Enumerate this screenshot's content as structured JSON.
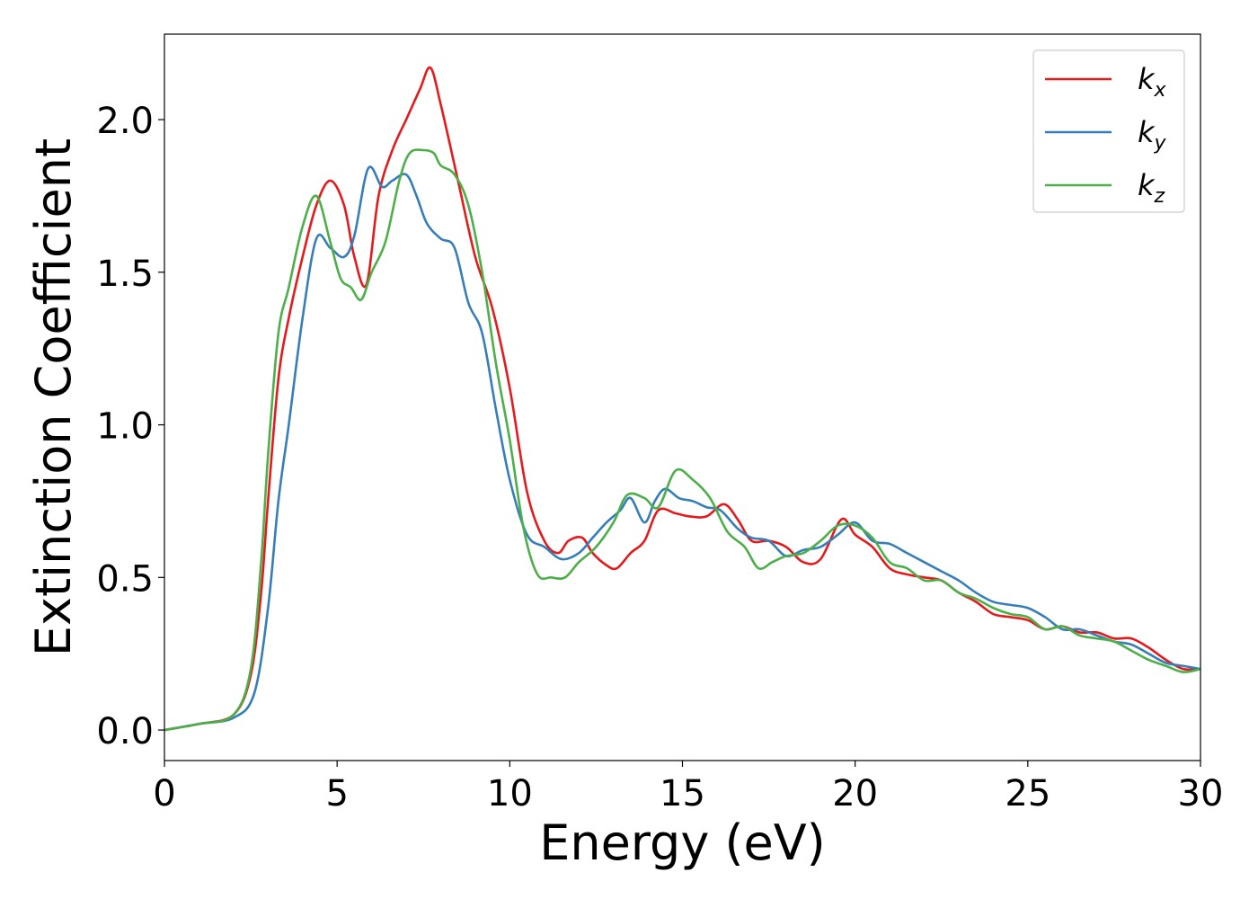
{
  "chart_data": {
    "type": "line",
    "title": "",
    "xlabel": "Energy (eV)",
    "ylabel": "Extinction Coefficient",
    "xlim": [
      0,
      30
    ],
    "ylim": [
      -0.1,
      2.28
    ],
    "xticks": [
      0,
      5,
      10,
      15,
      20,
      25,
      30
    ],
    "xtick_labels": [
      "0",
      "5",
      "10",
      "15",
      "20",
      "25",
      "30"
    ],
    "yticks": [
      0.0,
      0.5,
      1.0,
      1.5,
      2.0
    ],
    "ytick_labels": [
      "0.0",
      "0.5",
      "1.0",
      "1.5",
      "2.0"
    ],
    "grid": false,
    "legend_position": "top-right",
    "series": [
      {
        "name": "k_x",
        "label_base": "k",
        "label_sub": "x",
        "color": "#e41a1c",
        "x": [
          0,
          1,
          2,
          2.5,
          2.8,
          3.0,
          3.3,
          3.6,
          4.0,
          4.4,
          4.8,
          5.2,
          5.5,
          5.85,
          6.2,
          6.6,
          7.0,
          7.4,
          7.7,
          8.0,
          8.5,
          9.0,
          9.5,
          10.0,
          10.5,
          11.0,
          11.4,
          11.7,
          12.1,
          12.4,
          12.8,
          13.1,
          13.5,
          13.9,
          14.3,
          14.8,
          15.2,
          15.7,
          16.2,
          16.6,
          17.0,
          17.5,
          18.0,
          18.5,
          19.0,
          19.6,
          20.0,
          20.5,
          21.0,
          21.5,
          22.0,
          22.5,
          23.0,
          23.5,
          24.0,
          24.5,
          25.0,
          25.5,
          26.0,
          26.5,
          27.0,
          27.5,
          28.0,
          28.5,
          29.0,
          29.5,
          30.0
        ],
        "y": [
          0,
          0.02,
          0.05,
          0.18,
          0.45,
          0.75,
          1.15,
          1.35,
          1.55,
          1.72,
          1.8,
          1.72,
          1.55,
          1.46,
          1.75,
          1.9,
          2.0,
          2.1,
          2.17,
          2.05,
          1.8,
          1.55,
          1.38,
          1.12,
          0.78,
          0.62,
          0.58,
          0.62,
          0.63,
          0.58,
          0.54,
          0.53,
          0.58,
          0.62,
          0.72,
          0.71,
          0.7,
          0.7,
          0.74,
          0.69,
          0.62,
          0.62,
          0.6,
          0.55,
          0.56,
          0.69,
          0.64,
          0.6,
          0.53,
          0.51,
          0.5,
          0.49,
          0.45,
          0.42,
          0.38,
          0.37,
          0.36,
          0.33,
          0.34,
          0.32,
          0.32,
          0.3,
          0.3,
          0.27,
          0.23,
          0.2,
          0.2
        ]
      },
      {
        "name": "k_y",
        "label_base": "k",
        "label_sub": "y",
        "color": "#377eb8",
        "x": [
          0,
          1,
          2,
          2.6,
          3.0,
          3.3,
          3.6,
          4.0,
          4.4,
          4.8,
          5.2,
          5.5,
          5.9,
          6.3,
          6.6,
          7.0,
          7.3,
          7.6,
          8.0,
          8.4,
          8.8,
          9.2,
          9.6,
          10.0,
          10.5,
          11.0,
          11.5,
          12.0,
          12.4,
          12.8,
          13.2,
          13.5,
          13.9,
          14.2,
          14.5,
          14.9,
          15.3,
          15.7,
          16.1,
          16.6,
          17.0,
          17.5,
          18.0,
          18.5,
          19.0,
          19.5,
          20.0,
          20.5,
          21.0,
          21.5,
          22.0,
          22.5,
          23.0,
          23.5,
          24.0,
          24.5,
          25.0,
          25.5,
          26.0,
          26.5,
          27.0,
          27.5,
          28.0,
          28.5,
          29.0,
          29.5,
          30.0
        ],
        "y": [
          0,
          0.02,
          0.04,
          0.12,
          0.4,
          0.75,
          1.0,
          1.35,
          1.61,
          1.58,
          1.55,
          1.62,
          1.84,
          1.78,
          1.8,
          1.82,
          1.75,
          1.66,
          1.61,
          1.58,
          1.4,
          1.3,
          1.05,
          0.82,
          0.64,
          0.6,
          0.56,
          0.58,
          0.63,
          0.68,
          0.72,
          0.76,
          0.68,
          0.75,
          0.79,
          0.76,
          0.75,
          0.73,
          0.72,
          0.66,
          0.63,
          0.62,
          0.57,
          0.59,
          0.6,
          0.64,
          0.68,
          0.62,
          0.61,
          0.58,
          0.55,
          0.52,
          0.49,
          0.45,
          0.42,
          0.41,
          0.4,
          0.37,
          0.33,
          0.33,
          0.31,
          0.29,
          0.28,
          0.25,
          0.22,
          0.21,
          0.2
        ]
      },
      {
        "name": "k_z",
        "label_base": "k",
        "label_sub": "z",
        "color": "#4daf4a",
        "x": [
          0,
          1,
          2,
          2.5,
          2.8,
          3.0,
          3.3,
          3.6,
          4.0,
          4.4,
          4.8,
          5.1,
          5.4,
          5.7,
          6.0,
          6.4,
          6.8,
          7.1,
          7.5,
          7.8,
          8.0,
          8.4,
          8.8,
          9.2,
          9.6,
          10.0,
          10.4,
          10.8,
          11.2,
          11.6,
          12.0,
          12.5,
          13.0,
          13.4,
          13.9,
          14.3,
          14.8,
          15.3,
          15.8,
          16.3,
          16.8,
          17.2,
          17.6,
          18.0,
          18.5,
          19.0,
          19.5,
          20.0,
          20.5,
          21.0,
          21.5,
          22.0,
          22.5,
          23.0,
          23.5,
          24.0,
          24.5,
          25.0,
          25.5,
          26.0,
          26.5,
          27.0,
          27.5,
          28.0,
          28.5,
          29.0,
          29.5,
          30.0
        ],
        "y": [
          0,
          0.02,
          0.05,
          0.2,
          0.55,
          0.9,
          1.3,
          1.45,
          1.65,
          1.75,
          1.6,
          1.48,
          1.45,
          1.41,
          1.5,
          1.6,
          1.8,
          1.89,
          1.9,
          1.89,
          1.85,
          1.82,
          1.72,
          1.5,
          1.2,
          0.95,
          0.66,
          0.51,
          0.5,
          0.5,
          0.55,
          0.6,
          0.68,
          0.77,
          0.76,
          0.73,
          0.85,
          0.82,
          0.76,
          0.65,
          0.6,
          0.53,
          0.55,
          0.57,
          0.58,
          0.62,
          0.67,
          0.67,
          0.63,
          0.55,
          0.53,
          0.49,
          0.49,
          0.45,
          0.43,
          0.4,
          0.38,
          0.37,
          0.33,
          0.34,
          0.31,
          0.3,
          0.29,
          0.26,
          0.23,
          0.21,
          0.19,
          0.2
        ]
      }
    ]
  }
}
